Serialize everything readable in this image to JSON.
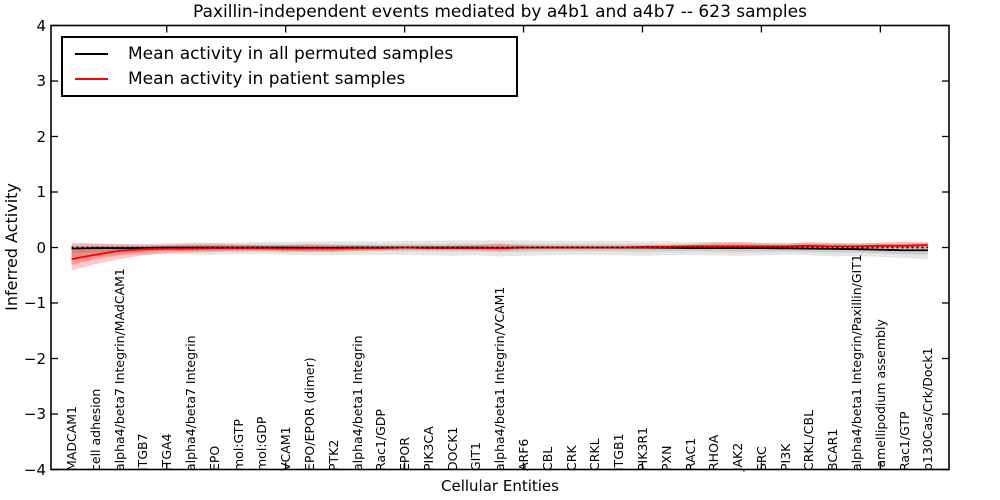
{
  "chart_data": {
    "type": "line",
    "title": "Paxillin-independent events mediated by a4b1 and a4b7 -- 623 samples",
    "xlabel": "Cellular Entities",
    "ylabel": "Inferred Activity",
    "ylim": [
      -4,
      4
    ],
    "ytick_labels": [
      "4",
      "3",
      "2",
      "1",
      "0",
      "−1",
      "−2",
      "−3",
      "−4"
    ],
    "grid": false,
    "legend": {
      "position": "upper-left",
      "entries": [
        {
          "label": "Mean activity in all permuted samples",
          "color": "#000000"
        },
        {
          "label": "Mean activity in patient samples",
          "color": "#ff0000"
        }
      ]
    },
    "categories": [
      "MADCAM1",
      "cell adhesion",
      "alpha4/beta7 Integrin/MAdCAM1",
      "ITGB7",
      "ITGA4",
      "alpha4/beta7 Integrin",
      "EPO",
      "mol:GTP",
      "mol:GDP",
      "VCAM1",
      "EPO/EPOR (dimer)",
      "PTK2",
      "alpha4/beta1 Integrin",
      "Rac1/GDP",
      "EPOR",
      "PIK3CA",
      "DOCK1",
      "GIT1",
      "alpha4/beta1 Integrin/VCAM1",
      "ARF6",
      "CBL",
      "CRK",
      "CRKL",
      "ITGB1",
      "PIK3R1",
      "PXN",
      "RAC1",
      "RHOA",
      "JAK2",
      "SRC",
      "PI3K",
      "CRKL/CBL",
      "BCAR1",
      "alpha4/beta1 Integrin/Paxillin/GIT1",
      "lamellipodium assembly",
      "Rac1/GTP",
      "p130Cas/Crk/Dock1"
    ],
    "series": [
      {
        "name": "Mean activity in all permuted samples",
        "color": "#000000",
        "band_color_rgb": "0,0,0",
        "band_alpha": 0.1,
        "mean": [
          -0.02,
          -0.01,
          -0.01,
          -0.01,
          0,
          0,
          0,
          0,
          0,
          0,
          -0.005,
          -0.005,
          0,
          0,
          0,
          0,
          0,
          0,
          -0.01,
          0,
          0,
          0,
          0,
          0,
          0,
          -0.005,
          -0.01,
          -0.01,
          -0.01,
          -0.01,
          -0.015,
          -0.02,
          -0.025,
          -0.03,
          -0.04,
          -0.05,
          -0.05
        ],
        "band_upper": [
          0.05,
          0.06,
          0.07,
          0.07,
          0.08,
          0.09,
          0.09,
          0.09,
          0.1,
          0.1,
          0.11,
          0.11,
          0.11,
          0.11,
          0.12,
          0.12,
          0.13,
          0.13,
          0.13,
          0.13,
          0.12,
          0.12,
          0.12,
          0.12,
          0.11,
          0.11,
          0.1,
          0.1,
          0.09,
          0.09,
          0.09,
          0.08,
          0.08,
          0.08,
          0.07,
          0.07,
          0.07
        ],
        "band_lower": [
          -0.18,
          -0.16,
          -0.14,
          -0.13,
          -0.12,
          -0.13,
          -0.13,
          -0.12,
          -0.12,
          -0.13,
          -0.14,
          -0.14,
          -0.13,
          -0.13,
          -0.13,
          -0.14,
          -0.15,
          -0.14,
          -0.16,
          -0.15,
          -0.14,
          -0.13,
          -0.13,
          -0.14,
          -0.15,
          -0.14,
          -0.13,
          -0.14,
          -0.15,
          -0.14,
          -0.13,
          -0.14,
          -0.16,
          -0.15,
          -0.17,
          -0.19,
          -0.21
        ]
      },
      {
        "name": "Mean activity in patient samples",
        "color": "#ff0000",
        "band_color_rgb": "255,0,0",
        "band_alpha": 0.22,
        "mean": [
          -0.21,
          -0.13,
          -0.06,
          -0.03,
          -0.02,
          -0.02,
          -0.01,
          -0.01,
          -0.01,
          -0.02,
          -0.02,
          -0.02,
          -0.01,
          -0.01,
          0,
          -0.01,
          -0.01,
          -0.01,
          -0.01,
          0,
          0,
          0,
          0,
          0,
          0.01,
          0.01,
          0.02,
          0.02,
          0.02,
          0.02,
          0.02,
          0.03,
          0.02,
          0.02,
          0.03,
          0.03,
          0.045
        ],
        "band_upper": [
          0.09,
          0.075,
          0.06,
          0.05,
          0.05,
          0.07,
          0.07,
          0.06,
          0.05,
          0.05,
          0.06,
          0.05,
          0.04,
          0.03,
          0.03,
          0.03,
          0.03,
          0.04,
          0.07,
          0.04,
          0.03,
          0.03,
          0.03,
          0.03,
          0.04,
          0.05,
          0.06,
          0.09,
          0.1,
          0.08,
          0.07,
          0.1,
          0.08,
          0.07,
          0.09,
          0.11,
          0.1
        ],
        "band_lower": [
          -0.41,
          -0.3,
          -0.21,
          -0.14,
          -0.1,
          -0.09,
          -0.08,
          -0.07,
          -0.07,
          -0.08,
          -0.08,
          -0.08,
          -0.06,
          -0.05,
          -0.04,
          -0.04,
          -0.04,
          -0.05,
          -0.06,
          -0.04,
          -0.03,
          -0.03,
          -0.03,
          -0.03,
          -0.03,
          -0.03,
          -0.02,
          -0.02,
          -0.02,
          -0.02,
          -0.02,
          -0.02,
          -0.02,
          -0.02,
          -0.01,
          -0.01,
          -0.01
        ]
      }
    ],
    "zero_line": {
      "value": 0,
      "style": "dotted",
      "color": "#000000"
    }
  }
}
